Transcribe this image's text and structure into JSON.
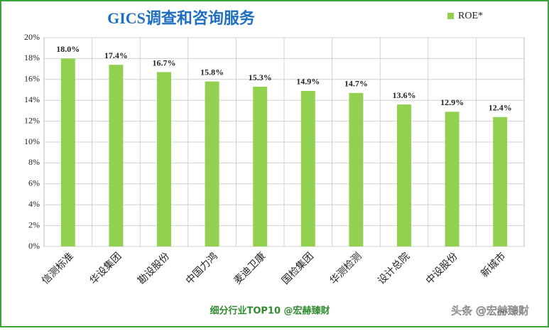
{
  "chart_data": {
    "type": "bar",
    "title": "GICS调查和咨询服务",
    "categories": [
      "信测标准",
      "华设集团",
      "勘设股份",
      "中国力鸿",
      "麦迪卫康",
      "国检集团",
      "华测检测",
      "设计总院",
      "中设股份",
      "新城市"
    ],
    "series": [
      {
        "name": "ROE*",
        "color": "#92d050",
        "values": [
          18.0,
          17.4,
          16.7,
          15.8,
          15.3,
          14.9,
          14.7,
          13.6,
          12.9,
          12.4
        ],
        "value_labels": [
          "18.0%",
          "17.4%",
          "16.7%",
          "15.8%",
          "15.3%",
          "14.9%",
          "14.7%",
          "13.6%",
          "12.9%",
          "12.4%"
        ]
      }
    ],
    "ylim": [
      0,
      20
    ],
    "yticks": [
      {
        "value": 0,
        "label": "0%"
      },
      {
        "value": 2,
        "label": "2%"
      },
      {
        "value": 4,
        "label": "4%"
      },
      {
        "value": 6,
        "label": "6%"
      },
      {
        "value": 8,
        "label": "8%"
      },
      {
        "value": 10,
        "label": "10%"
      },
      {
        "value": 12,
        "label": "12%"
      },
      {
        "value": 14,
        "label": "14%"
      },
      {
        "value": 16,
        "label": "16%"
      },
      {
        "value": 18,
        "label": "18%"
      },
      {
        "value": 20,
        "label": "20%"
      }
    ],
    "grid": true,
    "legend": "top-right",
    "source": "细分行业TOP10 @宏赫臻财",
    "watermark": "头条 @宏赫臻财"
  }
}
